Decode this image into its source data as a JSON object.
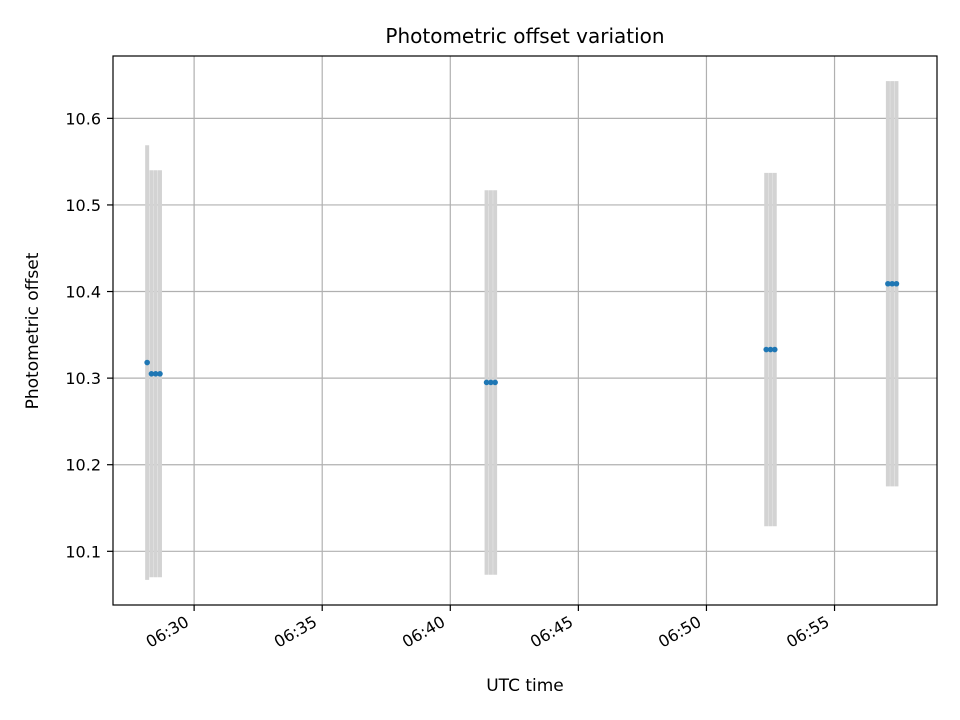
{
  "chart_data": {
    "type": "scatter",
    "title": "Photometric offset variation",
    "xlabel": "UTC time",
    "ylabel": "Photometric offset",
    "x_tick_labels": [
      "06:30",
      "06:35",
      "06:40",
      "06:45",
      "06:50",
      "06:55"
    ],
    "y_tick_labels": [
      "10.1",
      "10.2",
      "10.3",
      "10.4",
      "10.5",
      "10.6"
    ],
    "xlim": [
      "06:26:50",
      "06:59:00"
    ],
    "ylim": [
      10.038,
      10.672
    ],
    "grid": true,
    "colors": {
      "points": "#1f77b4",
      "error_bars": "#d3d3d3",
      "grid": "#b0b0b0"
    },
    "points": [
      {
        "x": "06:28:10",
        "y": 10.318,
        "yerr": 0.251
      },
      {
        "x": "06:28:20",
        "y": 10.305,
        "yerr": 0.235
      },
      {
        "x": "06:28:30",
        "y": 10.305,
        "yerr": 0.235
      },
      {
        "x": "06:28:40",
        "y": 10.305,
        "yerr": 0.235
      },
      {
        "x": "06:41:25",
        "y": 10.295,
        "yerr": 0.222
      },
      {
        "x": "06:41:35",
        "y": 10.295,
        "yerr": 0.222
      },
      {
        "x": "06:41:45",
        "y": 10.295,
        "yerr": 0.222
      },
      {
        "x": "06:52:20",
        "y": 10.333,
        "yerr": 0.204
      },
      {
        "x": "06:52:30",
        "y": 10.333,
        "yerr": 0.204
      },
      {
        "x": "06:52:40",
        "y": 10.333,
        "yerr": 0.204
      },
      {
        "x": "06:57:05",
        "y": 10.409,
        "yerr": 0.234
      },
      {
        "x": "06:57:15",
        "y": 10.409,
        "yerr": 0.234
      },
      {
        "x": "06:57:25",
        "y": 10.409,
        "yerr": 0.234
      }
    ]
  }
}
